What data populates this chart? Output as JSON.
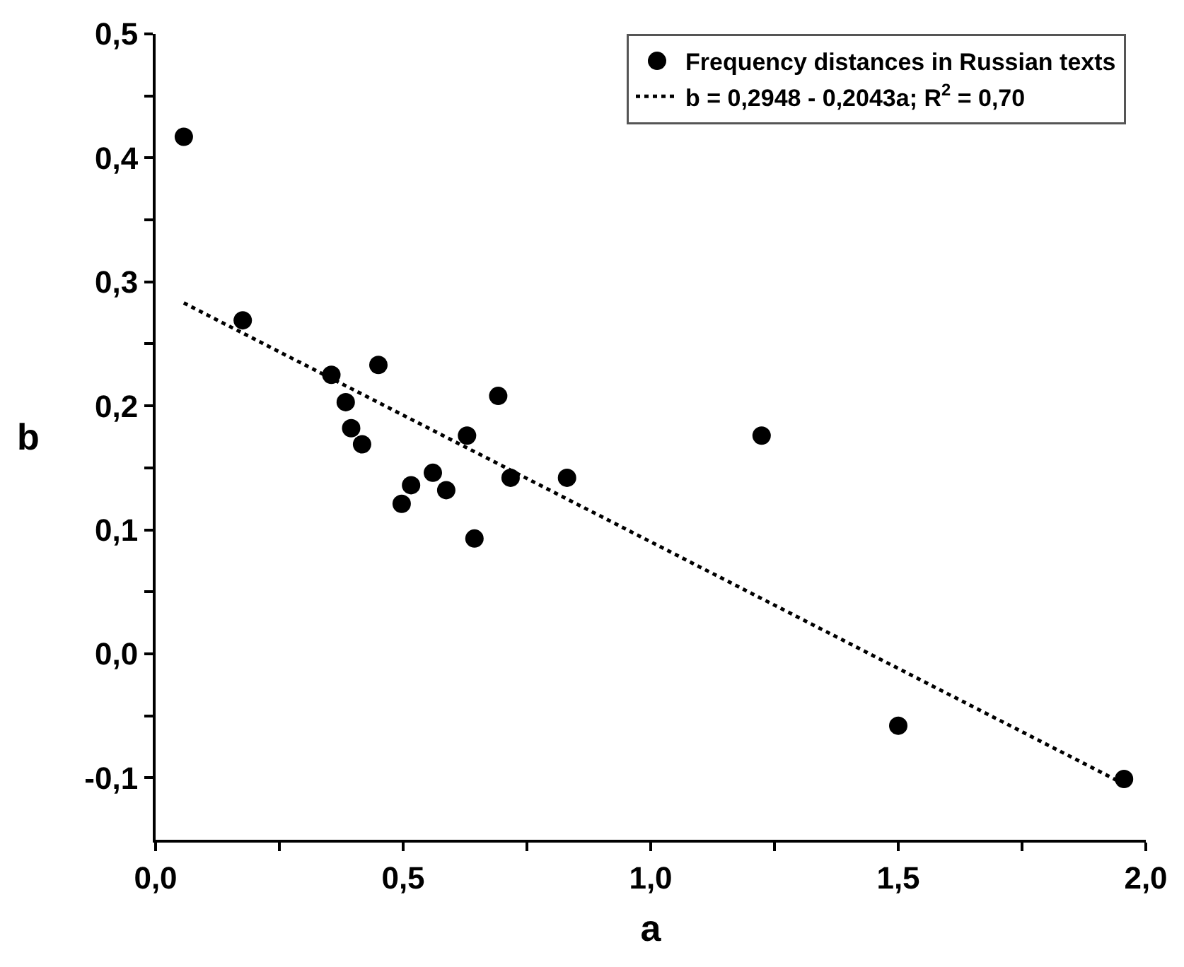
{
  "chart_data": {
    "type": "scatter",
    "xlabel": "a",
    "ylabel": "b",
    "xlim": [
      0,
      2.0
    ],
    "ylim": [
      -0.15,
      0.5
    ],
    "xticks": [
      {
        "value": 0,
        "label": "0,0"
      },
      {
        "value": 0.25,
        "label": null
      },
      {
        "value": 0.5,
        "label": "0,5"
      },
      {
        "value": 0.75,
        "label": null
      },
      {
        "value": 1.0,
        "label": "1,0"
      },
      {
        "value": 1.25,
        "label": null
      },
      {
        "value": 1.5,
        "label": "1,5"
      },
      {
        "value": 1.75,
        "label": null
      },
      {
        "value": 2.0,
        "label": "2,0"
      }
    ],
    "yticks": [
      {
        "value": -0.1,
        "label": "-0,1"
      },
      {
        "value": -0.05,
        "label": null
      },
      {
        "value": 0,
        "label": "0,0"
      },
      {
        "value": 0.05,
        "label": null
      },
      {
        "value": 0.1,
        "label": "0,1"
      },
      {
        "value": 0.15,
        "label": null
      },
      {
        "value": 0.2,
        "label": "0,2"
      },
      {
        "value": 0.25,
        "label": null
      },
      {
        "value": 0.3,
        "label": "0,3"
      },
      {
        "value": 0.35,
        "label": null
      },
      {
        "value": 0.4,
        "label": "0,4"
      },
      {
        "value": 0.45,
        "label": null
      },
      {
        "value": 0.5,
        "label": "0,5"
      }
    ],
    "legend": "top right",
    "series": [
      {
        "name": "Frequency distances in Russian texts",
        "marker": "circle",
        "color": "#000000",
        "x": [
          0.057,
          0.176,
          0.355,
          0.45,
          0.384,
          0.395,
          0.417,
          0.692,
          0.629,
          0.56,
          0.516,
          0.587,
          0.717,
          0.831,
          0.644,
          1.224,
          0.497,
          1.5,
          1.956
        ],
        "values": [
          0.417,
          0.269,
          0.225,
          0.233,
          0.203,
          0.182,
          0.169,
          0.208,
          0.176,
          0.146,
          0.136,
          0.132,
          0.142,
          0.142,
          0.093,
          0.176,
          0.121,
          -0.058,
          -0.101
        ]
      },
      {
        "name": "b = 0,2948 - 0,2043a; R$^{2}$ = 0,70",
        "type": "line",
        "line_style": "dotted",
        "marker": "none",
        "color": "#000000",
        "x": [
          0.057,
          1.956
        ],
        "values": [
          0.283,
          -0.105
        ]
      }
    ]
  }
}
